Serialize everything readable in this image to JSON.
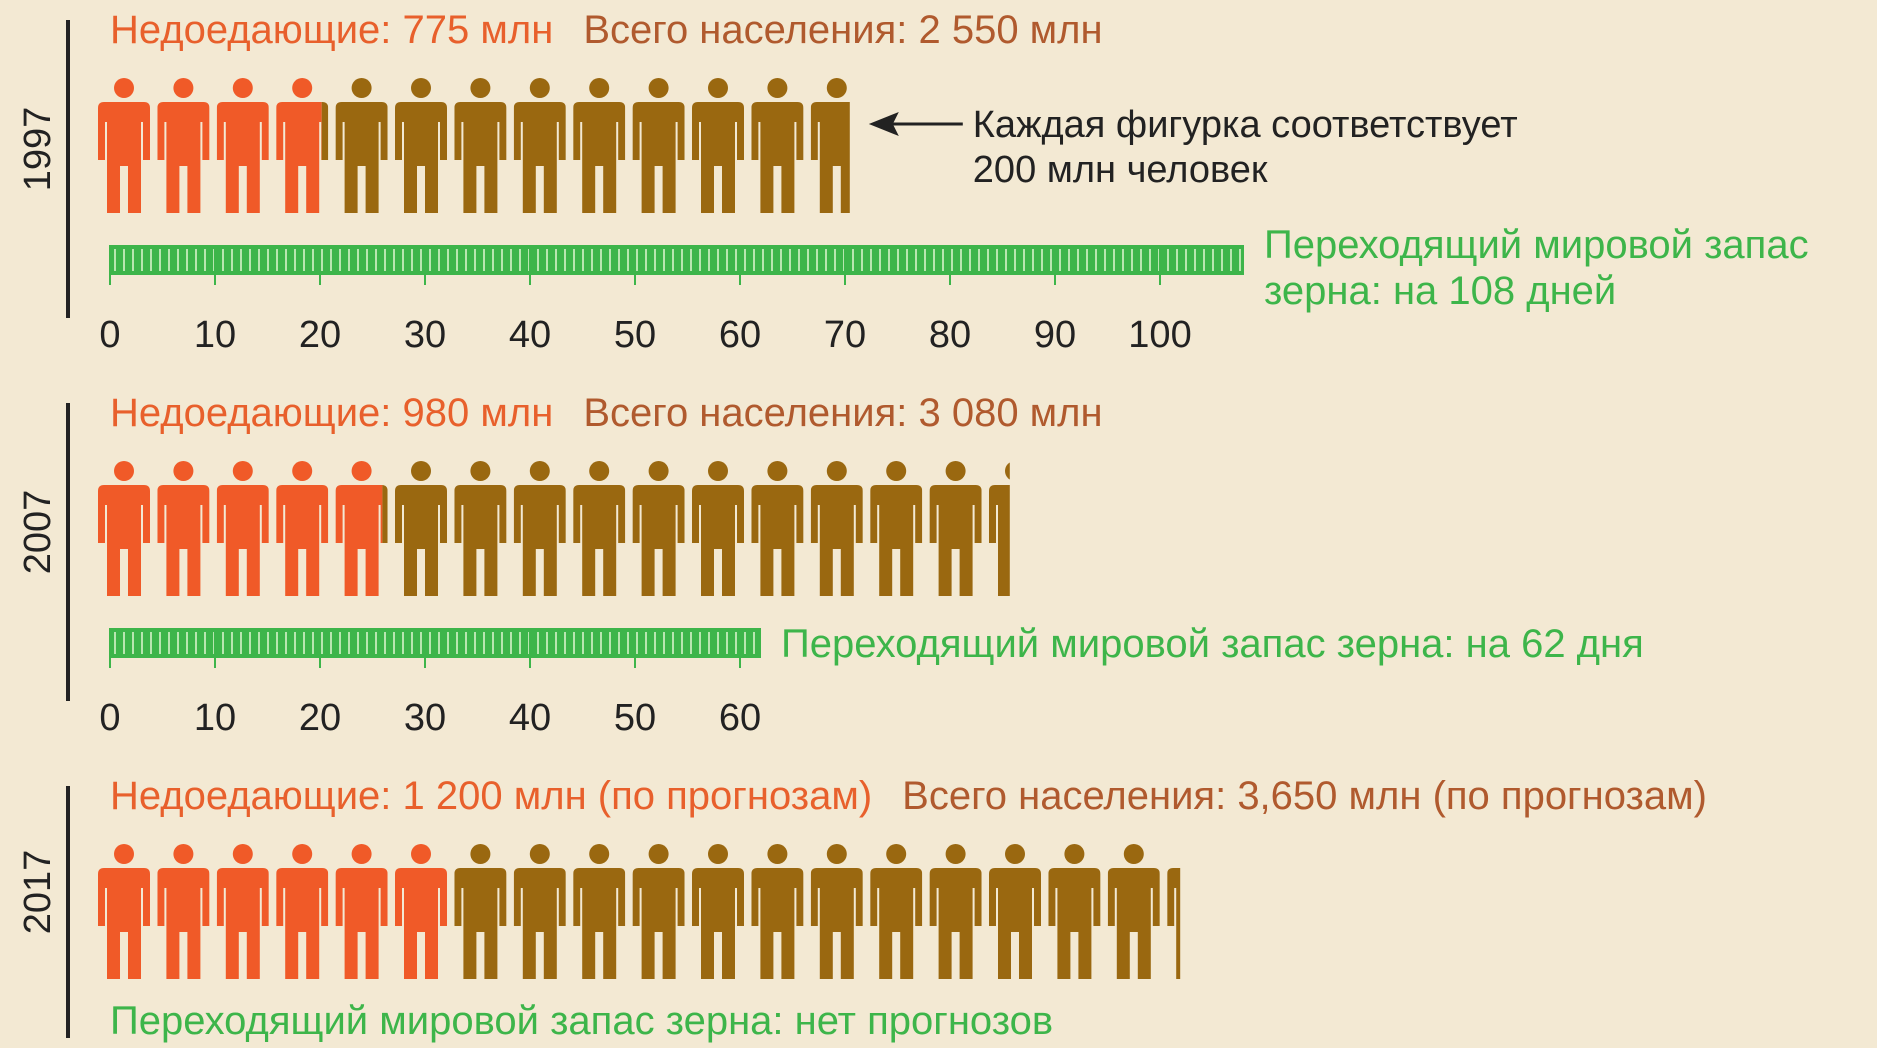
{
  "figure": {
    "value": 200,
    "annotation": [
      "Каждая фигурка соответствует",
      "200 млн человек"
    ]
  },
  "colors": {
    "undernourished": "#f05a28",
    "rest": "#9a6810",
    "stock": "#3db54a",
    "undernourished_text": "#e8602c",
    "population_text": "#b05a2e"
  },
  "chart_data": [
    {
      "type": "pictograph",
      "year": "1997",
      "undernourished": {
        "label": "Недоедающие: 775 млн",
        "value": 775
      },
      "population": {
        "label": "Всего населения: 2 550 млн",
        "value": 2550
      },
      "stock": {
        "lines": [
          "Переходящий мировой запас",
          "зерна: на 108 дней"
        ],
        "value": 108
      },
      "xlim": [
        0,
        108
      ],
      "xticks": [
        0,
        10,
        20,
        30,
        40,
        50,
        60,
        70,
        80,
        90,
        100
      ]
    },
    {
      "type": "pictograph",
      "year": "2007",
      "undernourished": {
        "label": "Недоедающие: 980 млн",
        "value": 980
      },
      "population": {
        "label": "Всего населения: 3 080 млн",
        "value": 3080
      },
      "stock": {
        "lines": [
          "Переходящий мировой запас зерна: на 62 дня"
        ],
        "value": 62
      },
      "xlim": [
        0,
        62
      ],
      "xticks": [
        0,
        10,
        20,
        30,
        40,
        50,
        60
      ]
    },
    {
      "type": "pictograph",
      "year": "2017",
      "undernourished": {
        "label": "Недоедающие: 1 200 млн (по прогнозам)",
        "value": 1200
      },
      "population": {
        "label": "Всего населения: 3,650 млн (по прогнозам)",
        "value": 3650
      },
      "stock": {
        "lines": [
          "Переходящий мировой запас зерна: нет прогнозов"
        ]
      }
    }
  ]
}
